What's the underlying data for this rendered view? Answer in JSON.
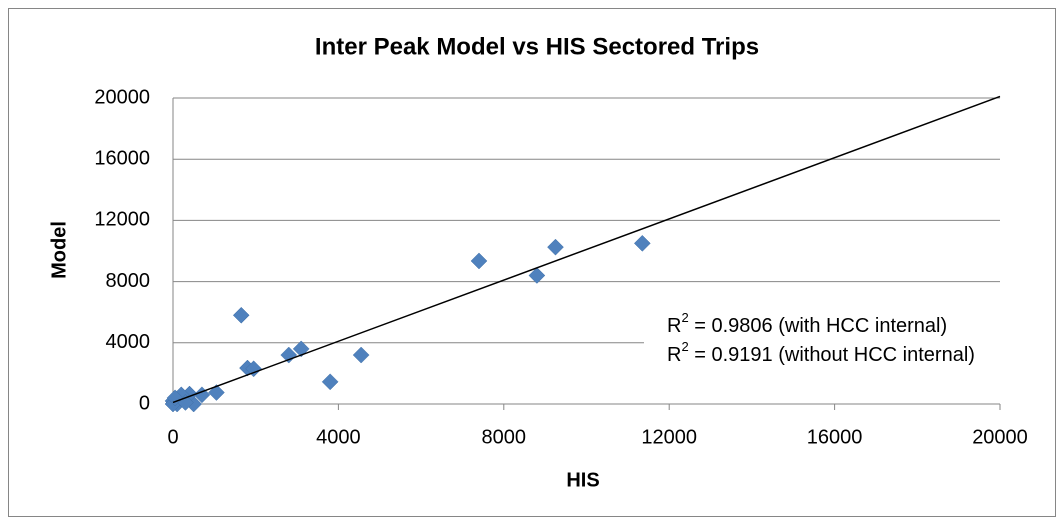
{
  "chart_data": {
    "type": "scatter",
    "title": "Inter Peak Model vs HIS Sectored Trips",
    "x_label": "HIS",
    "y_label": "Model",
    "xlim": [
      0,
      20000
    ],
    "xticks": [
      0,
      4000,
      8000,
      12000,
      16000,
      20000
    ],
    "ylim": [
      0,
      20000
    ],
    "yticks": [
      0,
      4000,
      8000,
      12000,
      16000,
      20000
    ],
    "grid": true,
    "series": [
      {
        "name": "Sectored Trips",
        "color": "#4f81bd",
        "x": [
          1650,
          7400,
          8800,
          9250,
          11350,
          4550,
          3800,
          3100,
          2800,
          1800,
          1950,
          1050,
          700,
          500,
          400,
          200,
          100,
          0,
          0,
          300,
          50
        ],
        "values": [
          5800,
          9350,
          8400,
          10250,
          10500,
          3200,
          1450,
          3600,
          3200,
          2350,
          2300,
          750,
          600,
          0,
          650,
          600,
          0,
          200,
          0,
          100,
          400
        ]
      }
    ],
    "trendline": {
      "color": "#000000",
      "x": [
        0,
        20000
      ],
      "values": [
        100,
        20100
      ]
    },
    "annotations": [
      {
        "base": "R",
        "sup": "2",
        "text": " = 0.9806 (with HCC internal)"
      },
      {
        "base": "R",
        "sup": "2",
        "text": " = 0.9191 (without HCC internal)"
      }
    ]
  }
}
